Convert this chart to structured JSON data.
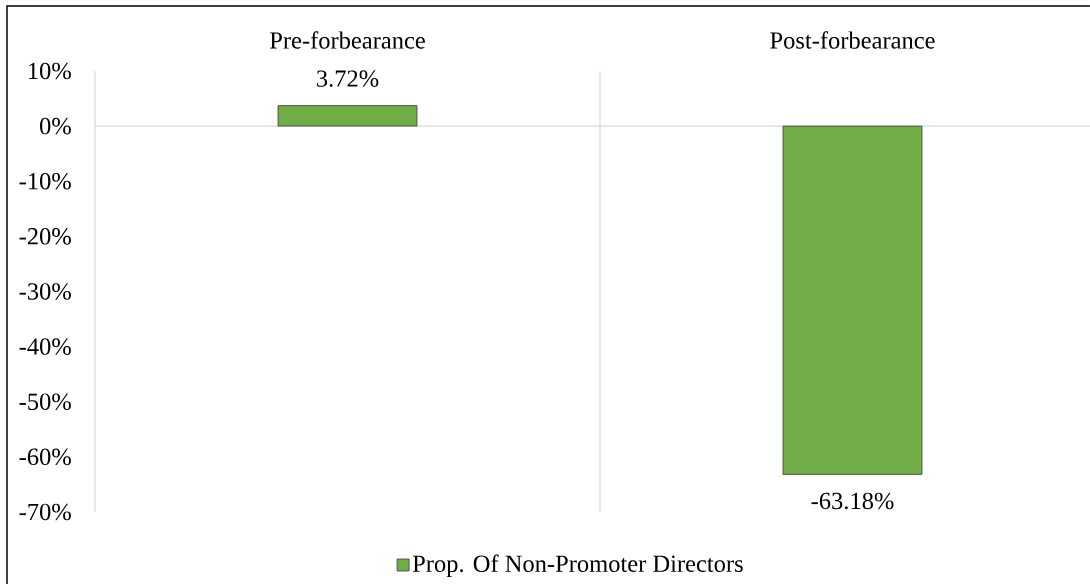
{
  "chart_data": {
    "type": "bar",
    "categories": [
      "Pre-forbearance",
      "Post-forbearance"
    ],
    "series": [
      {
        "name": "Prop. Of Non-Promoter Directors",
        "color": "#70ad47",
        "values": [
          3.72,
          -63.18
        ],
        "value_labels": [
          "3.72%",
          "-63.18%"
        ]
      }
    ],
    "ylim": [
      -70,
      10
    ],
    "yticks": [
      {
        "value": 10,
        "label": "10%"
      },
      {
        "value": 0,
        "label": "0%"
      },
      {
        "value": -10,
        "label": "-10%"
      },
      {
        "value": -20,
        "label": "-20%"
      },
      {
        "value": -30,
        "label": "-30%"
      },
      {
        "value": -40,
        "label": "-40%"
      },
      {
        "value": -50,
        "label": "-50%"
      },
      {
        "value": -60,
        "label": "-60%"
      },
      {
        "value": -70,
        "label": "-70%"
      }
    ],
    "ref_lines": [
      {
        "axis": "y",
        "value": 0,
        "color": "#d9d9d9"
      }
    ],
    "grid": "x",
    "legend": "bottom"
  }
}
